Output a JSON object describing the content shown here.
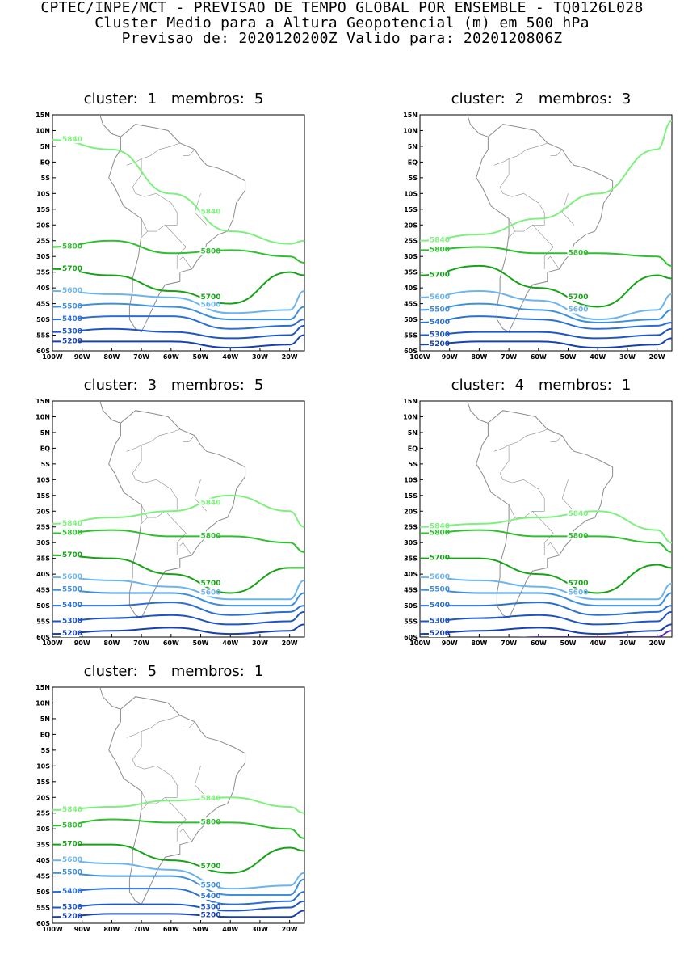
{
  "header": {
    "line1": "CPTEC/INPE/MCT - PREVISAO DE TEMPO GLOBAL POR ENSEMBLE - TQ0126L028",
    "line2": "Cluster Medio para a Altura Geopotencial (m) em 500 hPa",
    "line3": "Previsao de: 2020120200Z    Valido para: 2020120806Z"
  },
  "axes": {
    "lat_labels": [
      "15N",
      "10N",
      "5N",
      "EQ",
      "5S",
      "10S",
      "15S",
      "20S",
      "25S",
      "30S",
      "35S",
      "40S",
      "45S",
      "50S",
      "55S",
      "60S"
    ],
    "lon_labels": [
      "100W",
      "90W",
      "80W",
      "70W",
      "60W",
      "50W",
      "40W",
      "30W",
      "20W"
    ]
  },
  "colors": {
    "c5840": "#7ef07e",
    "c5800": "#2fbf2f",
    "c5700": "#16a316",
    "c5600": "#6cb4ee",
    "c5500": "#3d8fdf",
    "c5400": "#2a6fd4",
    "c5300": "#1e55c4",
    "c5200": "#1740b0",
    "c5100": "#5a2ab4",
    "coast": "#8c8c8c"
  },
  "clusters": [
    {
      "label": "cluster:",
      "number": "1",
      "members_label": "membros:",
      "members": "5",
      "contours": [
        {
          "level": "5840",
          "lat": [
            7,
            4,
            -10,
            -22,
            -26,
            -25
          ],
          "labels": [
            [
              250,
              158
            ],
            [
              180,
              260
            ],
            [
              140,
              102
            ]
          ]
        },
        {
          "level": "5800",
          "lat": [
            -27,
            -25,
            -29,
            -28,
            -30,
            -32
          ],
          "labels": [
            [
              40,
              286
            ],
            [
              205,
              165
            ]
          ]
        },
        {
          "level": "5700",
          "lat": [
            -34,
            -36,
            -41,
            -45,
            -35,
            -36
          ],
          "labels": [
            [
              40,
              326
            ],
            [
              230,
              352
            ]
          ]
        },
        {
          "level": "5600",
          "lat": [
            -41,
            -42,
            -43,
            -48,
            -47,
            -41
          ],
          "labels": [
            [
              40,
              346
            ],
            [
              240,
              372
            ]
          ]
        },
        {
          "level": "5500",
          "lat": [
            -46,
            -45,
            -46,
            -50,
            -50,
            -46
          ],
          "labels": [
            [
              150,
              357
            ]
          ]
        },
        {
          "level": "5400",
          "lat": [
            -50,
            -49,
            -49,
            -53,
            -52,
            -50
          ],
          "labels": [
            [
              150,
              370
            ]
          ]
        },
        {
          "level": "5300",
          "lat": [
            -54,
            -53,
            -54,
            -56,
            -55,
            -52
          ],
          "labels": [
            [
              150,
              387
            ]
          ]
        },
        {
          "level": "5200",
          "lat": [
            -57,
            -57,
            -57,
            -59,
            -58,
            -55
          ],
          "labels": [
            [
              180,
              398
            ]
          ]
        }
      ]
    },
    {
      "label": "cluster:",
      "number": "2",
      "members_label": "membros:",
      "members": "3",
      "contours": [
        {
          "level": "5840",
          "lat": [
            -25,
            -23,
            -18,
            -10,
            4,
            13
          ],
          "labels": [
            [
              110,
              -18
            ]
          ]
        },
        {
          "level": "5800",
          "lat": [
            -28,
            -27,
            -29,
            -29,
            -30,
            -33
          ],
          "labels": [
            [
              40,
              286
            ],
            [
              205,
              166
            ]
          ]
        },
        {
          "level": "5700",
          "lat": [
            -36,
            -33,
            -40,
            -46,
            -36,
            -37
          ],
          "labels": [
            [
              55,
              326
            ],
            [
              215,
              352
            ]
          ]
        },
        {
          "level": "5600",
          "lat": [
            -43,
            -41,
            -44,
            -50,
            -47,
            -42
          ],
          "labels": [
            [
              40,
              347
            ],
            [
              240,
              372
            ]
          ]
        },
        {
          "level": "5500",
          "lat": [
            -47,
            -45,
            -47,
            -51,
            -50,
            -47
          ],
          "labels": [
            [
              110,
              357
            ]
          ]
        },
        {
          "level": "5400",
          "lat": [
            -51,
            -49,
            -50,
            -53,
            -52,
            -51
          ],
          "labels": [
            [
              140,
              370
            ]
          ]
        },
        {
          "level": "5300",
          "lat": [
            -55,
            -54,
            -54,
            -56,
            -55,
            -53
          ],
          "labels": [
            [
              140,
              387
            ]
          ]
        },
        {
          "level": "5200",
          "lat": [
            -58,
            -57,
            -57,
            -59,
            -58,
            -56
          ],
          "labels": [
            [
              150,
              398
            ]
          ]
        }
      ]
    },
    {
      "label": "cluster:",
      "number": "3",
      "members_label": "membros:",
      "members": "5",
      "contours": [
        {
          "level": "5840",
          "lat": [
            -24,
            -22,
            -20,
            -15,
            -20,
            -25
          ],
          "labels": [
            [
              40,
              286
            ],
            [
              205,
              166
            ]
          ]
        },
        {
          "level": "5800",
          "lat": [
            -27,
            -26,
            -28,
            -28,
            -30,
            -33
          ],
          "labels": [
            [
              25,
              286
            ],
            [
              205,
              166
            ]
          ]
        },
        {
          "level": "5700",
          "lat": [
            -34,
            -35,
            -40,
            -46,
            -38,
            -38
          ],
          "labels": [
            [
              40,
              326
            ],
            [
              230,
              352
            ]
          ]
        },
        {
          "level": "5600",
          "lat": [
            -41,
            -42,
            -44,
            -48,
            -48,
            -42
          ],
          "labels": [
            [
              30,
              346
            ],
            [
              215,
              372
            ]
          ]
        },
        {
          "level": "5500",
          "lat": [
            -45,
            -46,
            -46,
            -50,
            -50,
            -46
          ],
          "labels": [
            [
              95,
              357
            ]
          ]
        },
        {
          "level": "5400",
          "lat": [
            -50,
            -50,
            -49,
            -53,
            -52,
            -50
          ],
          "labels": [
            [
              105,
              370
            ]
          ]
        },
        {
          "level": "5300",
          "lat": [
            -55,
            -54,
            -53,
            -56,
            -55,
            -52
          ],
          "labels": [
            [
              115,
              387
            ]
          ]
        },
        {
          "level": "5200",
          "lat": [
            -59,
            -58,
            -57,
            -59,
            -58,
            -56
          ],
          "labels": [
            [
              135,
              398
            ]
          ]
        }
      ]
    },
    {
      "label": "cluster:",
      "number": "4",
      "members_label": "membros:",
      "members": "1",
      "contours": [
        {
          "level": "5840",
          "lat": [
            -25,
            -24,
            -22,
            -20,
            -26,
            -30
          ],
          "labels": [
            [
              25,
              286
            ],
            [
              195,
              166
            ]
          ]
        },
        {
          "level": "5800",
          "lat": [
            -27,
            -26,
            -28,
            -28,
            -30,
            -33
          ],
          "labels": [
            [
              20,
              286
            ],
            [
              205,
              166
            ]
          ]
        },
        {
          "level": "5700",
          "lat": [
            -35,
            -35,
            -40,
            -46,
            -37,
            -38
          ],
          "labels": [
            [
              25,
              326
            ],
            [
              195,
              352
            ]
          ]
        },
        {
          "level": "5600",
          "lat": [
            -41,
            -42,
            -44,
            -48,
            -48,
            -43
          ],
          "labels": [
            [
              95,
              346
            ],
            [
              215,
              372
            ]
          ]
        },
        {
          "level": "5500",
          "lat": [
            -45,
            -46,
            -46,
            -50,
            -50,
            -46
          ],
          "labels": [
            [
              110,
              357
            ]
          ]
        },
        {
          "level": "5400",
          "lat": [
            -50,
            -50,
            -49,
            -53,
            -52,
            -50
          ],
          "labels": [
            [
              120,
              370
            ]
          ]
        },
        {
          "level": "5300",
          "lat": [
            -55,
            -54,
            -53,
            -56,
            -55,
            -52
          ],
          "labels": [
            [
              120,
              387
            ]
          ]
        },
        {
          "level": "5200",
          "lat": [
            -59,
            -58,
            -57,
            -59,
            -58,
            -56
          ],
          "labels": [
            [
              165,
              398
            ]
          ]
        },
        {
          "level": "5100",
          "lat": [
            -62,
            -61,
            -60,
            -60,
            -60,
            -58
          ],
          "labels": [
            [
              175,
              398
            ]
          ]
        }
      ]
    },
    {
      "label": "cluster:",
      "number": "5",
      "members_label": "membros:",
      "members": "1",
      "contours": [
        {
          "level": "5840",
          "lat": [
            -24,
            -23,
            -21,
            -20,
            -23,
            -25
          ],
          "labels": [
            [
              175,
              286
            ],
            [
              265,
              166
            ]
          ]
        },
        {
          "level": "5800",
          "lat": [
            -29,
            -27,
            -28,
            -28,
            -30,
            -33
          ],
          "labels": [
            [
              40,
              286
            ],
            [
              185,
              166
            ]
          ]
        },
        {
          "level": "5700",
          "lat": [
            -35,
            -35,
            -40,
            -44,
            -36,
            -37
          ],
          "labels": [
            [
              10,
              326
            ],
            [
              185,
              352
            ]
          ]
        },
        {
          "level": "5600",
          "lat": [
            -40,
            -41,
            -43,
            -49,
            -48,
            -44
          ],
          "labels": [
            [
              210,
              372
            ]
          ]
        },
        {
          "level": "5500",
          "lat": [
            -44,
            -45,
            -45,
            -51,
            -51,
            -46
          ],
          "labels": [
            [
              10,
              346
            ],
            [
              215,
              378
            ]
          ]
        },
        {
          "level": "5400",
          "lat": [
            -50,
            -49,
            -49,
            -54,
            -53,
            -50
          ],
          "labels": [
            [
              30,
              370
            ],
            [
              215,
              387
            ]
          ]
        },
        {
          "level": "5300",
          "lat": [
            -55,
            -54,
            -54,
            -56,
            -55,
            -53
          ],
          "labels": [
            [
              10,
              387
            ],
            [
              220,
              393
            ]
          ]
        },
        {
          "level": "5200",
          "lat": [
            -58,
            -57,
            -57,
            -58,
            -58,
            -56
          ],
          "labels": [
            [
              55,
              398
            ],
            [
              220,
              398
            ]
          ]
        }
      ]
    }
  ]
}
